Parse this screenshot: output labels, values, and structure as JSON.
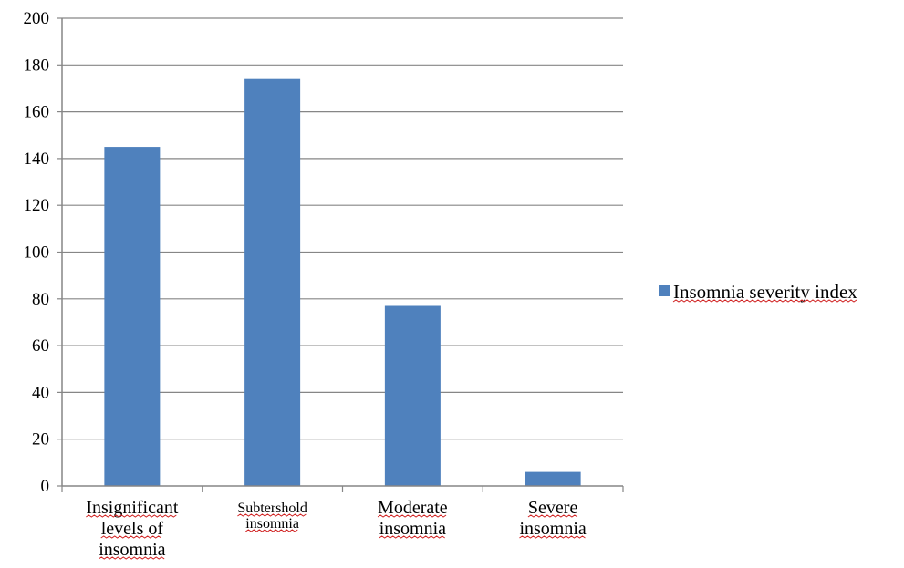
{
  "chart_data": {
    "type": "bar",
    "title": "",
    "xlabel": "",
    "ylabel": "",
    "ylim": [
      0,
      200
    ],
    "yticks": [
      0,
      20,
      40,
      60,
      80,
      100,
      120,
      140,
      160,
      180,
      200
    ],
    "categories": [
      [
        "Insignificant",
        "levels of",
        "insomnia"
      ],
      [
        "Subtershold",
        "insomnia"
      ],
      [
        "Moderate",
        "insomnia"
      ],
      [
        "Severe",
        "insomnia"
      ]
    ],
    "series": [
      {
        "name": "Insomnia severity index",
        "values": [
          145,
          174,
          77,
          6
        ],
        "color": "#4f81bd"
      }
    ],
    "grid": true,
    "legend_position": "right"
  }
}
